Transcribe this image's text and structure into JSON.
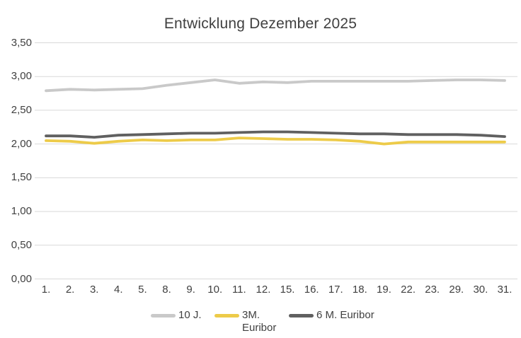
{
  "chart_data": {
    "type": "line",
    "title": "Entwicklung Dezember 2025",
    "xlabel": "",
    "ylabel": "",
    "ylim": [
      0,
      3.5
    ],
    "grid": true,
    "legend_position": "bottom",
    "categories": [
      "1.",
      "2.",
      "3.",
      "4.",
      "5.",
      "8.",
      "9.",
      "10.",
      "11.",
      "12.",
      "15.",
      "16.",
      "17.",
      "18.",
      "19.",
      "22.",
      "23.",
      "29.",
      "30.",
      "31."
    ],
    "y_ticks": [
      {
        "value": 3.5,
        "label": "3,50"
      },
      {
        "value": 3.0,
        "label": "3,00"
      },
      {
        "value": 2.5,
        "label": "2,50"
      },
      {
        "value": 2.0,
        "label": "2,00"
      },
      {
        "value": 1.5,
        "label": "1,50"
      },
      {
        "value": 1.0,
        "label": "1,00"
      },
      {
        "value": 0.5,
        "label": "0,50"
      },
      {
        "value": 0.0,
        "label": "0,00"
      }
    ],
    "series": [
      {
        "name": "10 J.",
        "color": "#c9c9c9",
        "values": [
          2.79,
          2.81,
          2.8,
          2.81,
          2.82,
          2.87,
          2.91,
          2.95,
          2.9,
          2.92,
          2.91,
          2.93,
          2.93,
          2.93,
          2.93,
          2.93,
          2.94,
          2.95,
          2.95,
          2.94
        ]
      },
      {
        "name": "3M. Euribor",
        "color": "#edcb49",
        "values": [
          2.05,
          2.04,
          2.01,
          2.04,
          2.06,
          2.05,
          2.06,
          2.06,
          2.09,
          2.08,
          2.07,
          2.07,
          2.06,
          2.04,
          2.0,
          2.03,
          2.03,
          2.03,
          2.03,
          2.03
        ]
      },
      {
        "name": "6 M. Euribor",
        "color": "#606060",
        "values": [
          2.12,
          2.12,
          2.1,
          2.13,
          2.14,
          2.15,
          2.16,
          2.16,
          2.17,
          2.18,
          2.18,
          2.17,
          2.16,
          2.15,
          2.15,
          2.14,
          2.14,
          2.14,
          2.13,
          2.11
        ]
      }
    ],
    "colors": {
      "text": "#404040",
      "gridline": "#d9d9d9",
      "background": "#ffffff"
    }
  }
}
